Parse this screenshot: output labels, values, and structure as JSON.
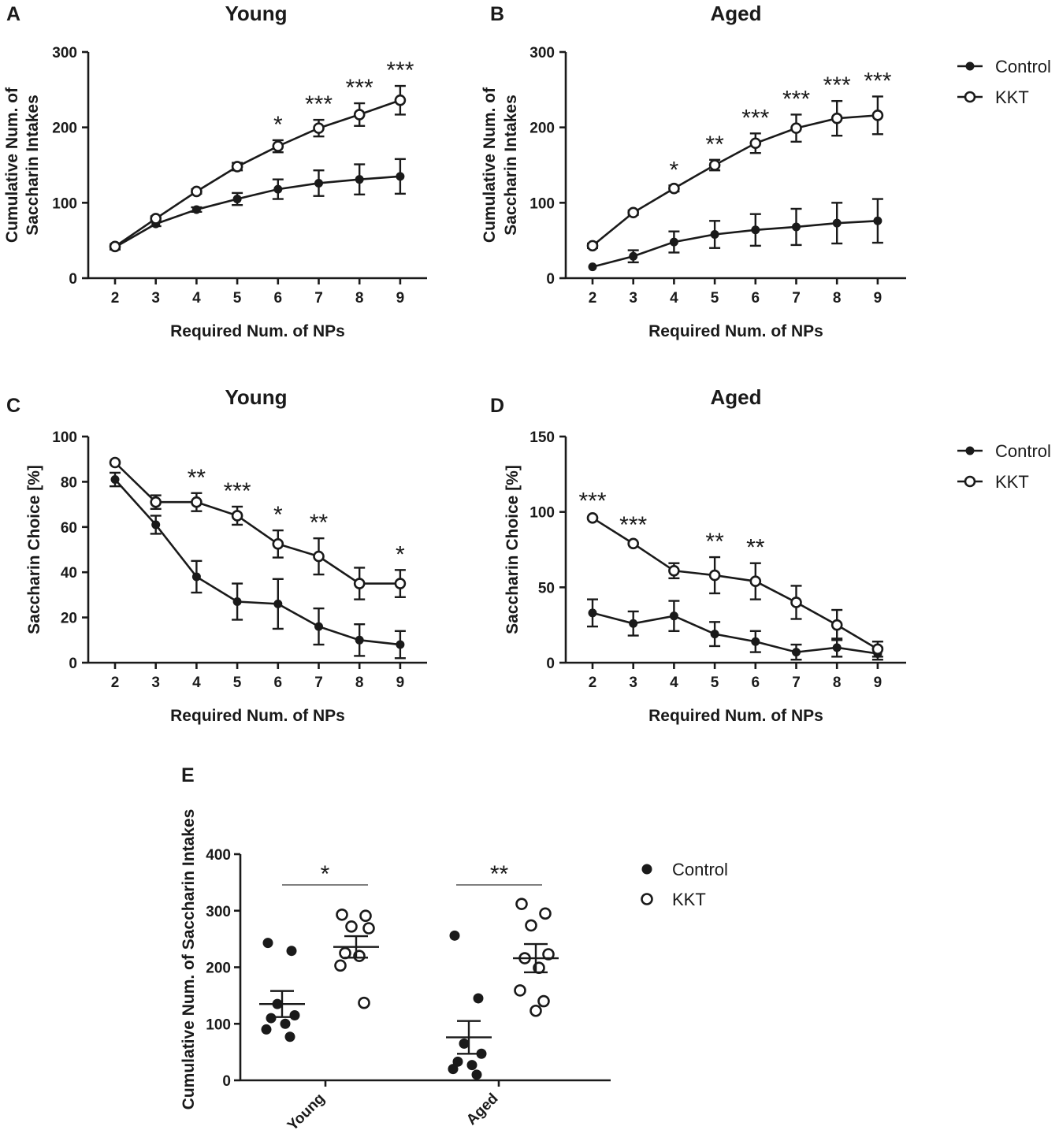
{
  "chart_data": [
    {
      "panel": "A",
      "type": "line",
      "title": "Young",
      "xlabel": "Required Num. of NPs",
      "ylabel": [
        "Cumulative Num. of",
        "Saccharin Intakes"
      ],
      "x": [
        2,
        3,
        4,
        5,
        6,
        7,
        8,
        9
      ],
      "ylim": [
        0,
        300
      ],
      "yticks": [
        0,
        100,
        200,
        300
      ],
      "series": [
        {
          "name": "Control",
          "marker": "filled",
          "values": [
            41,
            72,
            91,
            105,
            118,
            126,
            131,
            135
          ],
          "errors": [
            3,
            3,
            3,
            8,
            13,
            17,
            20,
            23
          ]
        },
        {
          "name": "KKT",
          "marker": "open",
          "values": [
            42,
            79,
            115,
            148,
            175,
            199,
            217,
            236
          ],
          "errors": [
            3,
            3,
            3,
            5,
            8,
            11,
            15,
            19
          ]
        }
      ],
      "significance": [
        "",
        "",
        "",
        "",
        "*",
        "***",
        "***",
        "***"
      ]
    },
    {
      "panel": "B",
      "type": "line",
      "title": "Aged",
      "xlabel": "Required Num. of NPs",
      "ylabel": [
        "Cumulative Num. of",
        "Saccharin Intakes"
      ],
      "x": [
        2,
        3,
        4,
        5,
        6,
        7,
        8,
        9
      ],
      "ylim": [
        0,
        300
      ],
      "yticks": [
        0,
        100,
        200,
        300
      ],
      "series": [
        {
          "name": "Control",
          "marker": "filled",
          "values": [
            15,
            29,
            48,
            58,
            64,
            68,
            73,
            76
          ],
          "errors": [
            2,
            8,
            14,
            18,
            21,
            24,
            27,
            29
          ]
        },
        {
          "name": "KKT",
          "marker": "open",
          "values": [
            43,
            87,
            119,
            150,
            179,
            199,
            212,
            216
          ],
          "errors": [
            3,
            3,
            4,
            7,
            13,
            18,
            23,
            25
          ]
        }
      ],
      "significance": [
        "",
        "",
        "*",
        "**",
        "***",
        "***",
        "***",
        "***"
      ],
      "legend": [
        "Control",
        "KKT"
      ]
    },
    {
      "panel": "C",
      "type": "line",
      "title": "Young",
      "xlabel": "Required Num. of NPs",
      "ylabel": [
        "Saccharin Choice [%]"
      ],
      "x": [
        2,
        3,
        4,
        5,
        6,
        7,
        8,
        9
      ],
      "ylim": [
        0,
        100
      ],
      "yticks": [
        0,
        20,
        40,
        60,
        80,
        100
      ],
      "series": [
        {
          "name": "Control",
          "marker": "filled",
          "values": [
            81,
            61,
            38,
            27,
            26,
            16,
            10,
            8
          ],
          "errors": [
            3,
            4,
            7,
            8,
            11,
            8,
            7,
            6
          ]
        },
        {
          "name": "KKT",
          "marker": "open",
          "values": [
            88.5,
            71,
            71,
            65,
            52.5,
            47,
            35,
            35
          ],
          "errors": [
            1,
            3,
            4,
            4,
            6,
            8,
            7,
            6
          ]
        }
      ],
      "significance": [
        "",
        "",
        "**",
        "***",
        "*",
        "**",
        "",
        "*"
      ]
    },
    {
      "panel": "D",
      "type": "line",
      "title": "Aged",
      "xlabel": "Required Num. of NPs",
      "ylabel": [
        "Saccharin Choice [%]"
      ],
      "x": [
        2,
        3,
        4,
        5,
        6,
        7,
        8,
        9
      ],
      "ylim": [
        0,
        150
      ],
      "yticks": [
        0,
        50,
        100,
        150
      ],
      "series": [
        {
          "name": "Control",
          "marker": "filled",
          "values": [
            33,
            26,
            31,
            19,
            14,
            7,
            10,
            6
          ],
          "errors": [
            9,
            8,
            10,
            8,
            7,
            5,
            6,
            4
          ]
        },
        {
          "name": "KKT",
          "marker": "open",
          "values": [
            96,
            79,
            61,
            58,
            54,
            40,
            25,
            9
          ],
          "errors": [
            1,
            2,
            5,
            12,
            12,
            11,
            10,
            5
          ]
        }
      ],
      "significance": [
        "***",
        "***",
        "",
        "**",
        "**",
        "",
        "",
        ""
      ],
      "legend": [
        "Control",
        "KKT"
      ]
    },
    {
      "panel": "E",
      "type": "scatter",
      "ylabel": [
        "Cumulative Num. of Saccharin Intakes"
      ],
      "categories": [
        "Young",
        "Aged"
      ],
      "ylim": [
        0,
        400
      ],
      "yticks": [
        0,
        100,
        200,
        300,
        400
      ],
      "groups": [
        {
          "category": "Young",
          "name": "Control",
          "marker": "filled",
          "points": [
            243,
            229,
            135,
            115,
            110,
            100,
            90,
            77
          ],
          "mean": 135,
          "sem": 23
        },
        {
          "category": "Young",
          "name": "KKT",
          "marker": "open",
          "points": [
            293,
            291,
            272,
            269,
            225,
            220,
            203,
            137
          ],
          "mean": 236,
          "sem": 19
        },
        {
          "category": "Aged",
          "name": "Control",
          "marker": "filled",
          "points": [
            256,
            145,
            65,
            47,
            33,
            27,
            20,
            10
          ],
          "mean": 76,
          "sem": 29
        },
        {
          "category": "Aged",
          "name": "KKT",
          "marker": "open",
          "points": [
            312,
            295,
            274,
            223,
            216,
            199,
            159,
            140,
            123
          ],
          "mean": 216,
          "sem": 25
        }
      ],
      "significance": [
        "*",
        "**"
      ],
      "legend": [
        "Control",
        "KKT"
      ]
    }
  ]
}
